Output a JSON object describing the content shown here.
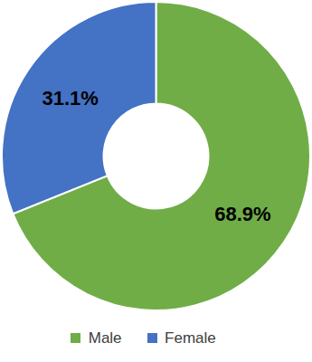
{
  "chart_data": {
    "type": "donut",
    "categories": [
      "Male",
      "Female"
    ],
    "values": [
      68.9,
      31.1
    ],
    "value_labels": [
      "68.9%",
      "31.1%"
    ],
    "colors": [
      "#70ad47",
      "#4472c4"
    ],
    "data_labels": true,
    "legend": "bottom"
  }
}
